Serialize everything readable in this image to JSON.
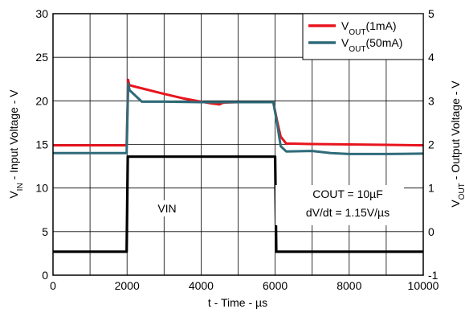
{
  "chart_data": {
    "type": "line",
    "x": {
      "label": "t - Time - µs",
      "min": 0,
      "max": 10000,
      "ticks": [
        "0",
        "2000",
        "4000",
        "6000",
        "8000",
        "10000"
      ],
      "tick_values": [
        0,
        2000,
        4000,
        6000,
        8000,
        10000
      ]
    },
    "y_left": {
      "label": "V_IN - Input Voltage - V",
      "min": 0,
      "max": 30,
      "ticks": [
        "0",
        "5",
        "10",
        "15",
        "20",
        "25",
        "30"
      ],
      "tick_values": [
        0,
        5,
        10,
        15,
        20,
        25,
        30
      ]
    },
    "y_right": {
      "label": "V_OUT - Output Voltage - V",
      "min": -1,
      "max": 5,
      "ticks": [
        "-1",
        "0",
        "1",
        "2",
        "3",
        "4",
        "5"
      ],
      "tick_values": [
        -1,
        0,
        1,
        2,
        3,
        4,
        5
      ]
    },
    "grid": true,
    "legend": {
      "placement": "top-right",
      "entries": [
        {
          "main": "V",
          "sub": "OUT",
          "suffix": "(1mA)",
          "color": "#e8141e"
        },
        {
          "main": "V",
          "sub": "OUT",
          "suffix": "(50mA)",
          "color": "#2f6b79"
        }
      ]
    },
    "annotations": {
      "vin_label": "VIN",
      "cout": "COUT = 10µF",
      "dvdt": "dV/dt = 1.15V/µs"
    },
    "series": [
      {
        "name": "VOUT(1mA)",
        "axis": "right",
        "color": "#e8141e",
        "x": [
          0,
          1990,
          2030,
          2060,
          2200,
          3000,
          3500,
          4000,
          4300,
          4500,
          4600,
          5000,
          5500,
          5950,
          6050,
          6150,
          6300,
          7000,
          8000,
          9000,
          10000
        ],
        "y": [
          1.98,
          1.98,
          3.48,
          3.36,
          3.33,
          3.16,
          3.06,
          2.98,
          2.94,
          2.92,
          2.96,
          2.97,
          2.97,
          2.97,
          2.55,
          2.18,
          2.02,
          2.01,
          2.0,
          1.99,
          1.98
        ]
      },
      {
        "name": "VOUT(50mA)",
        "axis": "right",
        "color": "#2f6b79",
        "x": [
          0,
          1990,
          2030,
          2070,
          2150,
          2400,
          3000,
          4000,
          5000,
          5950,
          6050,
          6150,
          6300,
          7000,
          7500,
          8000,
          9000,
          10000
        ],
        "y": [
          1.8,
          1.8,
          3.4,
          3.24,
          3.18,
          2.98,
          2.98,
          2.97,
          2.97,
          2.97,
          2.5,
          1.96,
          1.84,
          1.85,
          1.8,
          1.78,
          1.78,
          1.79
        ]
      },
      {
        "name": "VIN",
        "axis": "left",
        "color": "#000000",
        "x": [
          0,
          1990,
          2020,
          6000,
          6030,
          10000
        ],
        "y": [
          2.7,
          2.7,
          13.6,
          13.6,
          2.7,
          2.7
        ]
      }
    ]
  }
}
